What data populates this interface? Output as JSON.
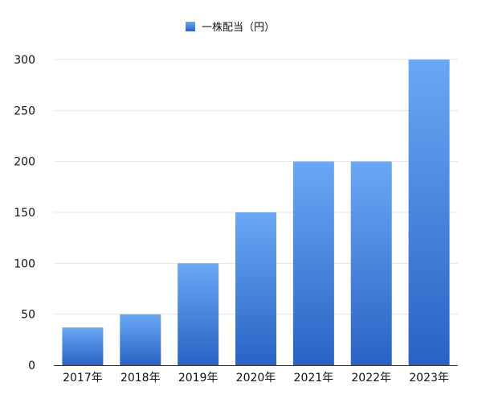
{
  "chart_data": {
    "type": "bar",
    "categories": [
      "2017年",
      "2018年",
      "2019年",
      "2020年",
      "2021年",
      "2022年",
      "2023年"
    ],
    "series": [
      {
        "name": "一株配当（円）",
        "values": [
          37,
          50,
          100,
          150,
          200,
          200,
          300
        ]
      }
    ],
    "title": "",
    "xlabel": "",
    "ylabel": "",
    "ylim": [
      0,
      300
    ],
    "yticks": [
      0,
      50,
      100,
      150,
      200,
      250,
      300
    ],
    "grid": true,
    "legend_position": "top-center",
    "colors": {
      "bar_top": "#6aa8f5",
      "bar_bottom": "#2a62c4",
      "grid": "#e4e4e4"
    }
  }
}
